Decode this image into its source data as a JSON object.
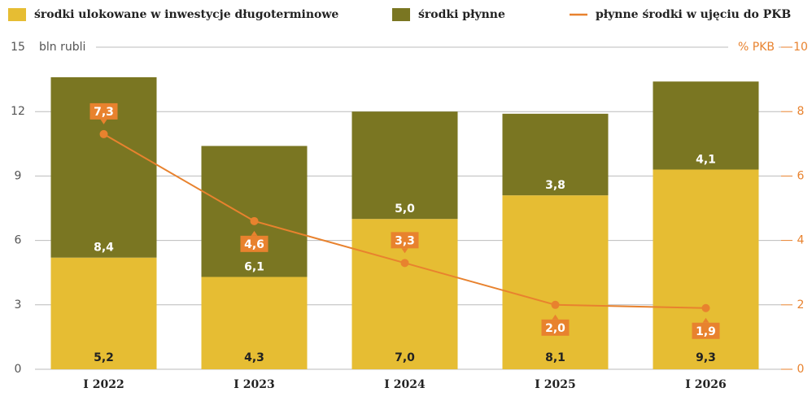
{
  "chart_data": {
    "type": "stacked-bar-line",
    "categories": [
      "I 2022",
      "I 2023",
      "I 2024",
      "I 2025",
      "I 2026"
    ],
    "series": [
      {
        "name": "środki ulokowane w inwestycje długoterminowe",
        "color": "#e6bd33",
        "values": [
          5.2,
          4.3,
          7.0,
          8.1,
          9.3
        ],
        "value_labels": [
          "5,2",
          "4,3",
          "7,0",
          "8,1",
          "9,3"
        ]
      },
      {
        "name": "środki płynne",
        "color": "#7a7622",
        "values": [
          8.4,
          6.1,
          5.0,
          3.8,
          4.1
        ],
        "value_labels": [
          "8,4",
          "6,1",
          "5,0",
          "3,8",
          "4,1"
        ]
      },
      {
        "name": "płynne środki w ujęciu do PKB",
        "color": "#e8822e",
        "axis": "y2",
        "values": [
          7.3,
          4.6,
          3.3,
          2.0,
          1.9
        ],
        "value_labels": [
          "7,3",
          "4,6",
          "3,3",
          "2,0",
          "1,9"
        ]
      }
    ],
    "ylabel": "bln rubli",
    "y2label": "% PKB",
    "ylim": [
      0,
      15
    ],
    "yticks": [
      0,
      3,
      6,
      9,
      12,
      15
    ],
    "y2lim": [
      0,
      10
    ],
    "y2ticks": [
      0,
      2,
      4,
      6,
      8,
      10
    ],
    "grid": true,
    "legend": "top"
  }
}
